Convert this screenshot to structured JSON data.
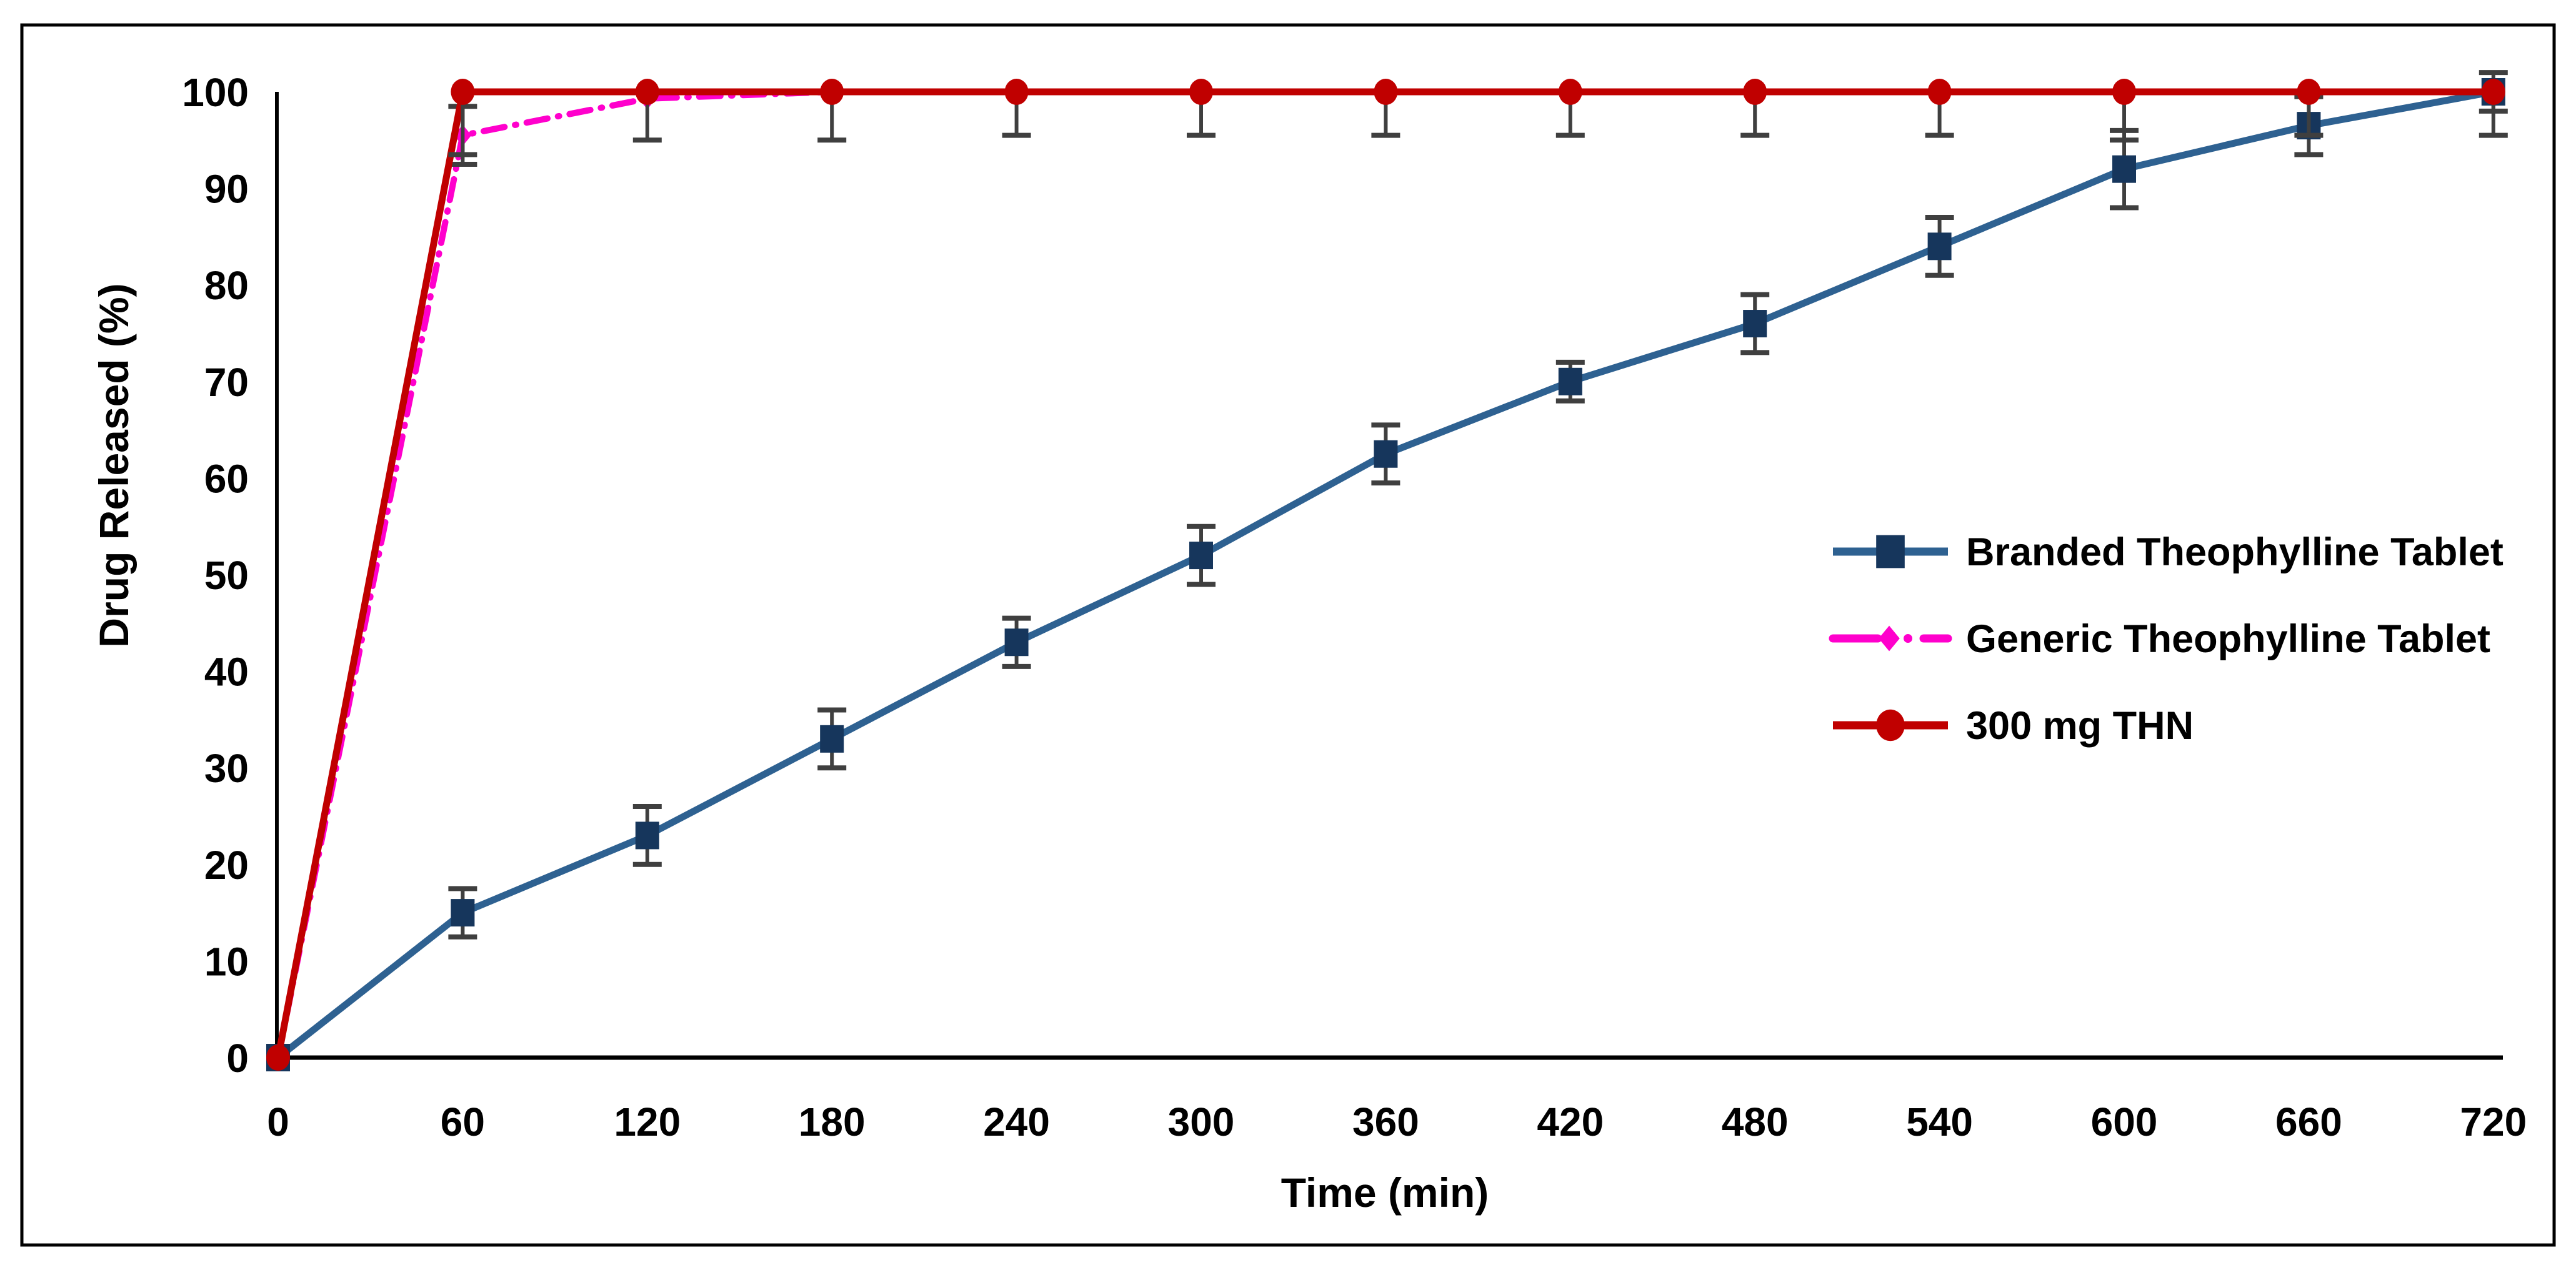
{
  "figure": {
    "background_color": "#ffffff",
    "frame_border_color": "#000000"
  },
  "chart_data": {
    "type": "line",
    "title": "",
    "xlabel": "Time (min)",
    "ylabel": "Drug Released (%)",
    "x": [
      0,
      60,
      120,
      180,
      240,
      300,
      360,
      420,
      480,
      540,
      600,
      660,
      720
    ],
    "x_tick_labels": [
      "0",
      "60",
      "120",
      "180",
      "240",
      "300",
      "360",
      "420",
      "480",
      "540",
      "600",
      "660",
      "720"
    ],
    "y_ticks": [
      0,
      10,
      20,
      30,
      40,
      50,
      60,
      70,
      80,
      90,
      100
    ],
    "xlim": [
      0,
      720
    ],
    "ylim": [
      0,
      100
    ],
    "grid": false,
    "legend_position": "middle-right",
    "error_bar_color": "#3F3F3F",
    "series": [
      {
        "name": "Branded Theophylline Tablet",
        "line_color": "#2E6191",
        "marker": "square",
        "marker_color": "#16365C",
        "line_style": "solid",
        "values": [
          0,
          15,
          23,
          33,
          43,
          52,
          62.5,
          70,
          76,
          84,
          92,
          96.5,
          100
        ],
        "error": [
          0,
          2.5,
          3,
          3,
          2.5,
          3,
          3,
          2,
          3,
          3,
          4,
          3,
          2
        ],
        "error_dir": "both"
      },
      {
        "name": "Generic Theophylline Tablet",
        "line_color": "#FF00CC",
        "marker": "diamond",
        "marker_color": "#FF00CC",
        "line_style": "dash-dot",
        "values": [
          0,
          95.5,
          99.3,
          100,
          100,
          100,
          100,
          100,
          100,
          100,
          100,
          100,
          100
        ],
        "error": [
          0,
          3,
          0,
          0,
          0,
          0,
          0,
          0,
          0,
          0,
          0,
          0,
          0
        ],
        "error_dir": "both"
      },
      {
        "name": "300 mg THN",
        "line_color": "#C00000",
        "marker": "circle",
        "marker_color": "#C00000",
        "line_style": "solid",
        "values": [
          0,
          100,
          100,
          100,
          100,
          100,
          100,
          100,
          100,
          100,
          100,
          100,
          100
        ],
        "error": [
          0,
          6.5,
          5,
          5,
          4.5,
          4.5,
          4.5,
          4.5,
          4.5,
          4.5,
          5,
          4.5,
          4.5
        ],
        "error_dir": "down"
      }
    ]
  }
}
